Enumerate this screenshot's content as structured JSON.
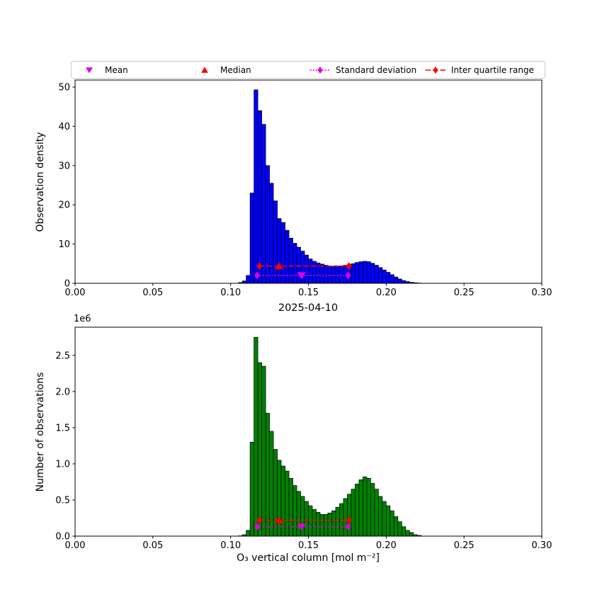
{
  "figure": {
    "background": "#ffffff"
  },
  "legend": {
    "items": [
      {
        "label": "Mean",
        "marker": "triangle-down",
        "color": "#e000e0",
        "line": "none"
      },
      {
        "label": "Median",
        "marker": "triangle-up",
        "color": "#ff0000",
        "line": "none"
      },
      {
        "label": "Standard deviation",
        "marker": "diamond",
        "color": "#e000e0",
        "line": "dotted"
      },
      {
        "label": "Inter quartile range",
        "marker": "diamond",
        "color": "#ff0000",
        "line": "dashed"
      }
    ]
  },
  "chart_data": [
    {
      "type": "bar",
      "title": "",
      "xlabel": "",
      "ylabel": "Observation density",
      "bar_color": "#0000ff",
      "bar_edge_color": "#000000",
      "bins": {
        "start": 0.105,
        "width": 0.0025
      },
      "values": [
        0.2,
        0.6,
        2.0,
        23.0,
        49.3,
        44.0,
        40.5,
        30.0,
        25.5,
        21.0,
        16.5,
        15.5,
        13.5,
        11.5,
        10.2,
        9.2,
        8.2,
        7.2,
        6.2,
        5.6,
        5.2,
        4.9,
        4.6,
        4.4,
        4.3,
        4.3,
        4.4,
        4.6,
        4.8,
        5.0,
        5.3,
        5.5,
        5.6,
        5.5,
        5.1,
        4.6,
        4.0,
        3.4,
        2.8,
        2.2,
        1.6,
        1.1,
        0.7,
        0.45,
        0.25,
        0.15,
        0.08
      ],
      "xlim": [
        0.0,
        0.3
      ],
      "ylim": [
        0.0,
        51.8
      ],
      "xticks": [
        0.0,
        0.05,
        0.1,
        0.15,
        0.2,
        0.25,
        0.3
      ],
      "xtick_labels": [
        "0.00",
        "0.05",
        "0.10",
        "0.15",
        "0.20",
        "0.25",
        "0.30"
      ],
      "yticks": [
        0,
        10,
        20,
        30,
        40,
        50
      ],
      "ytick_labels": [
        "0",
        "10",
        "20",
        "30",
        "40",
        "50"
      ],
      "grid": false,
      "stats": {
        "mean": {
          "x": 0.1455,
          "y": 2.0,
          "color": "#e000e0",
          "marker": "triangle-down"
        },
        "median": {
          "x": 0.131,
          "y": 4.4,
          "color": "#ff0000",
          "marker": "triangle-up"
        },
        "std_span": {
          "x1": 0.117,
          "x2": 0.1755,
          "y": 2.0,
          "color": "#e000e0",
          "line": "dotted",
          "marker": "diamond"
        },
        "iqr_span": {
          "x1": 0.1185,
          "x2": 0.176,
          "y": 4.4,
          "color": "#ff0000",
          "line": "dashed",
          "marker": "diamond"
        }
      }
    },
    {
      "type": "bar",
      "title": "2025-04-10",
      "xlabel": "O₃ vertical column [mol m⁻²]",
      "ylabel": "Number of observations",
      "offset_label": "1e6",
      "value_scale": "1e6",
      "bar_color": "#008000",
      "bar_edge_color": "#000000",
      "bins": {
        "start": 0.105,
        "width": 0.0025
      },
      "values": [
        0.005,
        0.02,
        0.08,
        1.3,
        2.75,
        2.4,
        2.35,
        1.7,
        1.45,
        1.2,
        1.05,
        0.97,
        0.9,
        0.8,
        0.7,
        0.62,
        0.55,
        0.48,
        0.42,
        0.37,
        0.33,
        0.3,
        0.3,
        0.32,
        0.35,
        0.4,
        0.45,
        0.52,
        0.58,
        0.65,
        0.72,
        0.78,
        0.82,
        0.8,
        0.73,
        0.65,
        0.55,
        0.48,
        0.42,
        0.35,
        0.27,
        0.2,
        0.13,
        0.08,
        0.05,
        0.02,
        0.01
      ],
      "xlim": [
        0.0,
        0.3
      ],
      "ylim": [
        0.0,
        2.89
      ],
      "xticks": [
        0.0,
        0.05,
        0.1,
        0.15,
        0.2,
        0.25,
        0.3
      ],
      "xtick_labels": [
        "0.00",
        "0.05",
        "0.10",
        "0.15",
        "0.20",
        "0.25",
        "0.30"
      ],
      "yticks": [
        0.0,
        0.5,
        1.0,
        1.5,
        2.0,
        2.5
      ],
      "ytick_labels": [
        "0.0",
        "0.5",
        "1.0",
        "1.5",
        "2.0",
        "2.5"
      ],
      "grid": false,
      "stats": {
        "mean": {
          "x": 0.1455,
          "y": 0.13,
          "color": "#e000e0",
          "marker": "triangle-down"
        },
        "median": {
          "x": 0.131,
          "y": 0.22,
          "color": "#ff0000",
          "marker": "triangle-up"
        },
        "std_span": {
          "x1": 0.117,
          "x2": 0.1755,
          "y": 0.13,
          "color": "#e000e0",
          "line": "dotted",
          "marker": "diamond"
        },
        "iqr_span": {
          "x1": 0.1185,
          "x2": 0.176,
          "y": 0.22,
          "color": "#ff0000",
          "line": "dashed",
          "marker": "diamond"
        }
      }
    }
  ]
}
